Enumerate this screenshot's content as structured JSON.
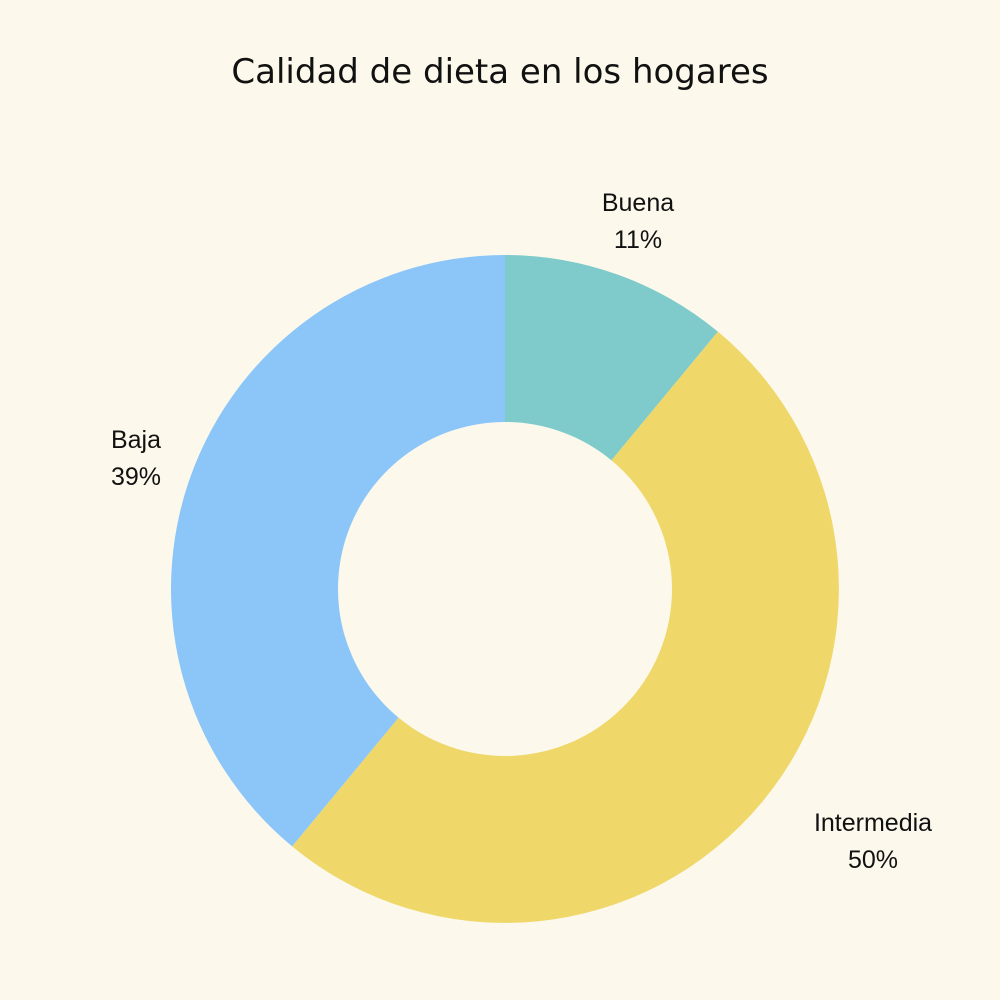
{
  "chart_data": {
    "type": "pie",
    "title": "Calidad de dieta en los hogares",
    "donut": true,
    "start_angle_deg": 0,
    "direction": "clockwise",
    "slices": [
      {
        "label": "Buena",
        "value": 11,
        "value_label": "11%",
        "color": "#7fcaca"
      },
      {
        "label": "Intermedia",
        "value": 50,
        "value_label": "50%",
        "color": "#efd769"
      },
      {
        "label": "Baja",
        "value": 39,
        "value_label": "39%",
        "color": "#8cc6f9"
      }
    ]
  },
  "colors": {
    "background": "#fcf9ec",
    "text": "#111111"
  }
}
